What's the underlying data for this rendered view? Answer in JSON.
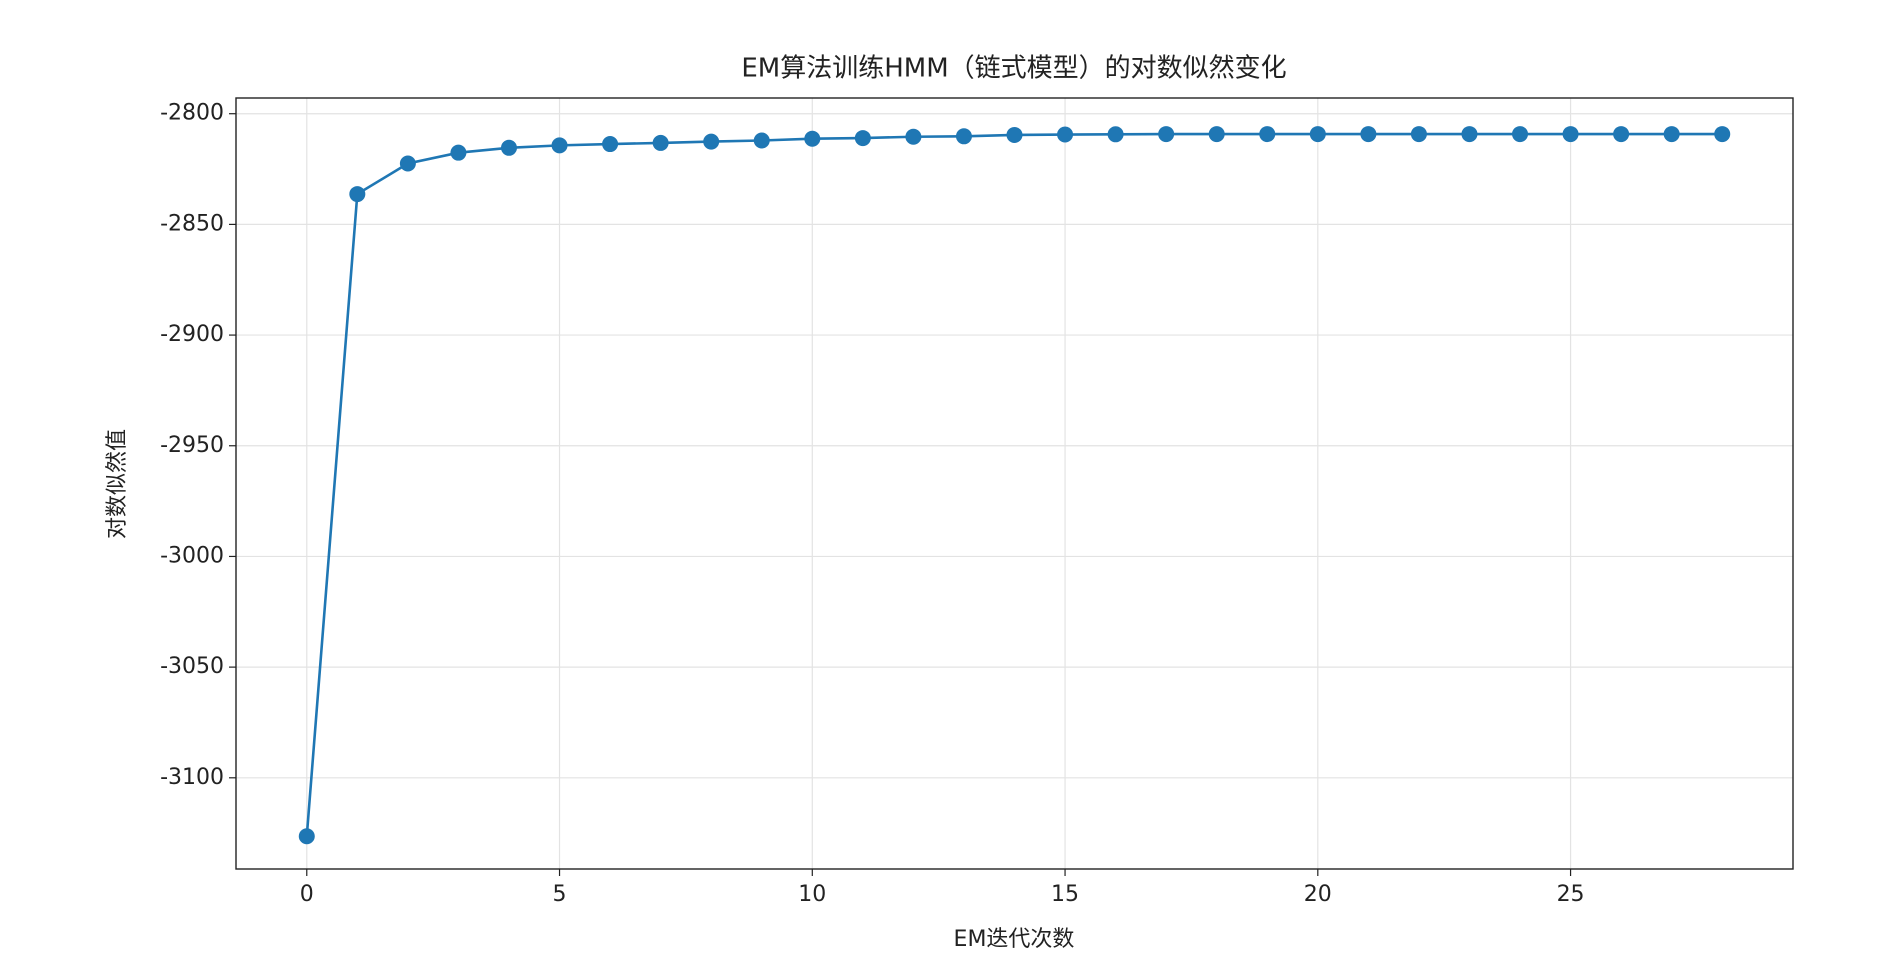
{
  "chart_data": {
    "type": "line",
    "title": "EM算法训练HMM（链式模型）的对数似然变化",
    "xlabel": "EM迭代次数",
    "ylabel": "对数似然值",
    "x": [
      0,
      1,
      2,
      3,
      4,
      5,
      6,
      7,
      8,
      9,
      10,
      11,
      12,
      13,
      14,
      15,
      16,
      17,
      18,
      19,
      20,
      21,
      22,
      23,
      24,
      25,
      26,
      27,
      28
    ],
    "values": [
      -3126.4,
      -2836.3,
      -2822.5,
      -2817.6,
      -2815.4,
      -2814.3,
      -2813.7,
      -2813.2,
      -2812.6,
      -2812.1,
      -2811.3,
      -2811.0,
      -2810.4,
      -2810.2,
      -2809.6,
      -2809.4,
      -2809.3,
      -2809.2,
      -2809.2,
      -2809.2,
      -2809.2,
      -2809.2,
      -2809.2,
      -2809.2,
      -2809.2,
      -2809.2,
      -2809.2,
      -2809.2,
      -2809.2
    ],
    "color": "#1f77b4",
    "marker": "circle",
    "xlim": [
      -1.4,
      29.4
    ],
    "xticks": [
      0,
      5,
      10,
      15,
      20,
      25
    ],
    "ylim": [
      -3141.2,
      -2792.9
    ],
    "yticks": [
      -3100,
      -3050,
      -3000,
      -2950,
      -2900,
      -2850,
      -2800
    ],
    "grid": true
  }
}
